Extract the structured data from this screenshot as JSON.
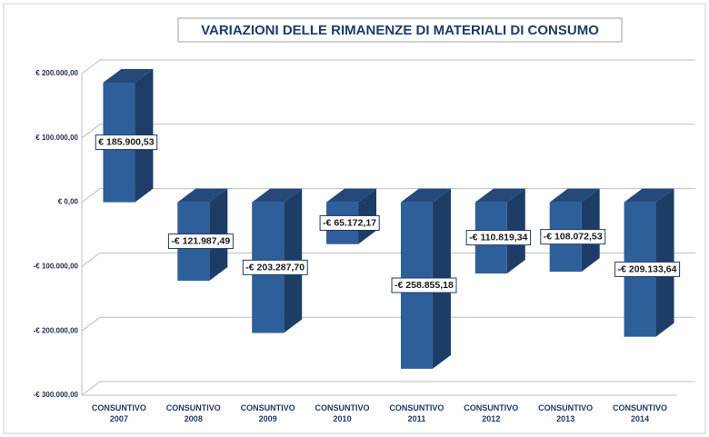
{
  "chart_data": {
    "type": "bar3d",
    "title": "VARIAZIONI DELLE RIMANENZE DI MATERIALI DI CONSUMO",
    "categories": [
      "CONSUNTIVO 2007",
      "CONSUNTIVO 2008",
      "CONSUNTIVO 2009",
      "CONSUNTIVO 2010",
      "CONSUNTIVO 2011",
      "CONSUNTIVO 2012",
      "CONSUNTIVO 2013",
      "CONSUNTIVO 2014"
    ],
    "values": [
      185900.53,
      -121987.49,
      -203287.7,
      -65172.17,
      -258855.18,
      -110819.34,
      -108072.53,
      -209133.64
    ],
    "value_labels": [
      "€ 185.900,53",
      "-€ 121.987,49",
      "-€ 203.287,70",
      "-€ 65.172,17",
      "-€ 258.855,18",
      "-€ 110.819,34",
      "-€ 108.072,53",
      "-€ 209.133,64"
    ],
    "color": "#2f5f9a",
    "ylim": [
      -300000,
      200000
    ],
    "yticks": [
      {
        "value": -300000,
        "label": "-€ 300.000,00"
      },
      {
        "value": -200000,
        "label": "-€ 200.000,00"
      },
      {
        "value": -100000,
        "label": "-€ 100.000,00"
      },
      {
        "value": 0,
        "label": "€ 0,00"
      },
      {
        "value": 100000,
        "label": "€ 100.000,00"
      },
      {
        "value": 200000,
        "label": "€ 200.000,00"
      }
    ],
    "grid": true
  }
}
